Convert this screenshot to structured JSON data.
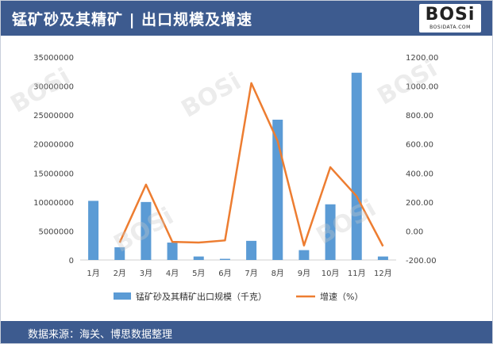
{
  "header": {
    "title": "锰矿砂及其精矿 | 出口规模及增速"
  },
  "logo": {
    "brand": "BOSi",
    "url": "BOSIDATA.COM"
  },
  "footer": {
    "source": "数据来源：海关、博思数据整理"
  },
  "colors": {
    "header_bg": "#3d5b8f",
    "bar": "#5b9bd5",
    "line": "#ed7d31"
  },
  "chart_data": {
    "type": "bar",
    "categories": [
      "1月",
      "2月",
      "3月",
      "4月",
      "5月",
      "6月",
      "7月",
      "8月",
      "9月",
      "10月",
      "11月",
      "12月"
    ],
    "series": [
      {
        "name": "锰矿砂及其精矿出口规模（千克）",
        "type": "bar",
        "axis": "left",
        "values": [
          10200000,
          2200000,
          10000000,
          3000000,
          600000,
          200000,
          3300000,
          24200000,
          1700000,
          9600000,
          32300000,
          600000
        ]
      },
      {
        "name": "增速（%）",
        "type": "line",
        "axis": "right",
        "values": [
          null,
          -80,
          320,
          -75,
          -80,
          -65,
          1020,
          620,
          -100,
          440,
          240,
          -105
        ]
      }
    ],
    "left_axis": {
      "ticks": [
        "0",
        "5000000",
        "10000000",
        "15000000",
        "20000000",
        "25000000",
        "30000000",
        "35000000"
      ],
      "ylim": [
        0,
        35000000
      ]
    },
    "right_axis": {
      "ticks": [
        "-200.00",
        "0.00",
        "200.00",
        "400.00",
        "600.00",
        "800.00",
        "1000.00",
        "1200.00"
      ],
      "ylim": [
        -200,
        1200
      ]
    },
    "legend": {
      "position": "bottom"
    },
    "grid": false
  }
}
